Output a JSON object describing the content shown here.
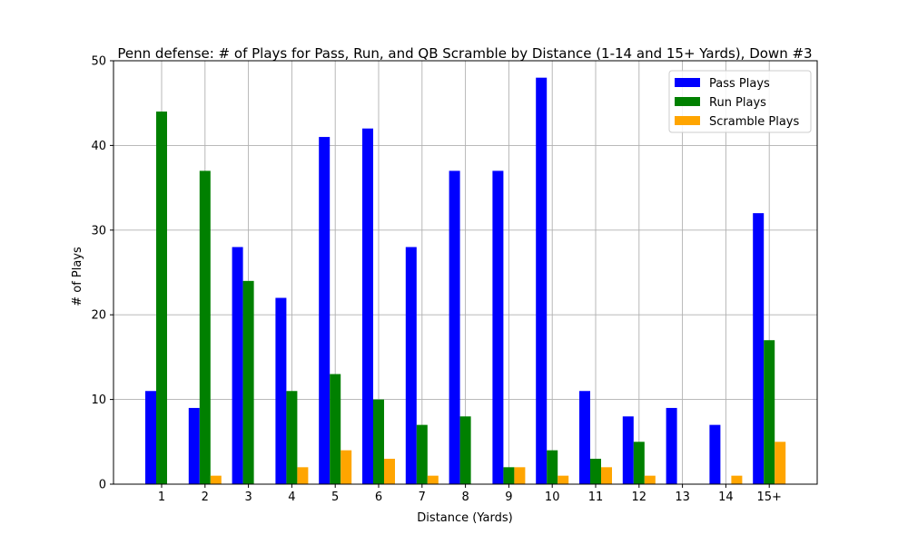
{
  "chart_data": {
    "type": "bar",
    "title": "Penn defense: # of Plays for Pass, Run, and QB Scramble by Distance (1-14 and 15+ Yards), Down #3",
    "xlabel": "Distance (Yards)",
    "ylabel": "# of Plays",
    "ylim": [
      0,
      50
    ],
    "yticks": [
      0,
      10,
      20,
      30,
      40,
      50
    ],
    "grid": true,
    "legend_position": "upper-right",
    "categories": [
      "1",
      "2",
      "3",
      "4",
      "5",
      "6",
      "7",
      "8",
      "9",
      "10",
      "11",
      "12",
      "13",
      "14",
      "15+"
    ],
    "series": [
      {
        "name": "Pass Plays",
        "color": "#0000ff",
        "values": [
          11,
          9,
          28,
          22,
          41,
          42,
          28,
          37,
          37,
          48,
          11,
          8,
          9,
          7,
          32
        ]
      },
      {
        "name": "Run Plays",
        "color": "#008000",
        "values": [
          44,
          37,
          24,
          11,
          13,
          10,
          7,
          8,
          2,
          4,
          3,
          5,
          0,
          0,
          17
        ]
      },
      {
        "name": "Scramble Plays",
        "color": "#ffa500",
        "values": [
          0,
          1,
          0,
          2,
          4,
          3,
          1,
          0,
          2,
          1,
          2,
          1,
          0,
          1,
          5
        ]
      }
    ]
  }
}
